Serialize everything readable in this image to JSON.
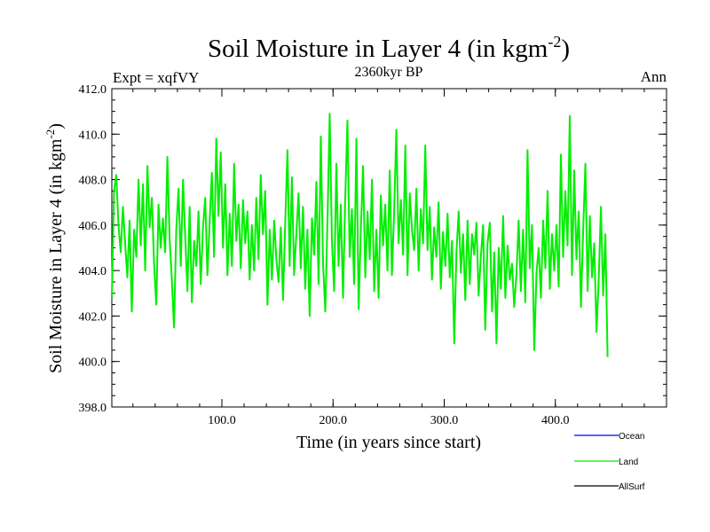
{
  "chart_data": {
    "type": "line",
    "title": "Soil Moisture in Layer 4 (in kgm",
    "title_sup": "-2",
    "title_close": ")",
    "subtitle": "2360kyr BP",
    "expt_label": "Expt = xqfVY",
    "period_label": "Ann",
    "xlabel": "Time (in years since start)",
    "ylabel": "Soil Moisture in Layer 4 (in kgm",
    "ylabel_sup": "-2",
    "ylabel_close": ")",
    "xlim": [
      1,
      500
    ],
    "ylim": [
      398.0,
      412.0
    ],
    "x_ticks": [
      {
        "value": 100,
        "label": "100.0"
      },
      {
        "value": 200,
        "label": "200.0"
      },
      {
        "value": 300,
        "label": "300.0"
      },
      {
        "value": 400,
        "label": "400.0"
      }
    ],
    "y_ticks": [
      {
        "value": 398,
        "label": "398.0"
      },
      {
        "value": 400,
        "label": "400.0"
      },
      {
        "value": 402,
        "label": "402.0"
      },
      {
        "value": 404,
        "label": "404.0"
      },
      {
        "value": 406,
        "label": "406.0"
      },
      {
        "value": 408,
        "label": "408.0"
      },
      {
        "value": 410,
        "label": "410.0"
      },
      {
        "value": 412,
        "label": "412.0"
      }
    ],
    "legend": [
      {
        "name": "Ocean",
        "color": "#0000ff"
      },
      {
        "name": "Land",
        "color": "#00ee00"
      },
      {
        "name": "AllSurf",
        "color": "#000000"
      }
    ],
    "series": [
      {
        "name": "Land",
        "color": "#00ee00",
        "x_start": 1,
        "x_step": 2,
        "values": [
          402.8,
          407.5,
          408.2,
          406.0,
          404.8,
          406.8,
          405.2,
          403.7,
          406.2,
          402.2,
          405.8,
          404.6,
          408.0,
          405.1,
          407.8,
          404.0,
          408.6,
          405.9,
          407.2,
          404.3,
          402.5,
          406.9,
          405.0,
          406.3,
          404.8,
          409.0,
          405.4,
          403.6,
          401.5,
          405.8,
          407.6,
          404.2,
          408.0,
          405.5,
          403.1,
          406.8,
          402.6,
          405.3,
          404.2,
          406.6,
          403.4,
          405.9,
          407.2,
          403.8,
          406.1,
          408.3,
          404.6,
          409.8,
          406.4,
          409.2,
          405.0,
          407.8,
          403.8,
          406.5,
          404.2,
          408.7,
          405.3,
          406.9,
          404.1,
          407.1,
          405.2,
          406.6,
          403.6,
          406.0,
          404.0,
          407.2,
          404.5,
          408.2,
          405.6,
          407.5,
          402.5,
          405.8,
          403.6,
          406.2,
          404.5,
          403.5,
          405.9,
          402.7,
          406.1,
          409.3,
          404.2,
          408.1,
          403.8,
          405.6,
          407.4,
          404.1,
          406.8,
          403.2,
          405.8,
          402.0,
          406.3,
          404.7,
          407.9,
          403.4,
          409.9,
          404.3,
          402.2,
          406.2,
          410.9,
          405.3,
          403.1,
          408.7,
          404.2,
          406.9,
          402.8,
          407.2,
          410.6,
          404.6,
          406.7,
          403.4,
          409.8,
          402.3,
          405.8,
          408.6,
          403.7,
          406.6,
          404.5,
          408.0,
          403.1,
          405.8,
          402.8,
          407.3,
          405.1,
          406.9,
          404.0,
          408.4,
          403.8,
          406.6,
          410.2,
          405.2,
          407.1,
          404.7,
          409.5,
          403.8,
          407.4,
          405.8,
          404.9,
          407.6,
          404.0,
          406.7,
          405.2,
          409.5,
          404.9,
          406.8,
          403.6,
          405.9,
          404.6,
          407.0,
          403.2,
          405.7,
          404.2,
          406.5,
          403.7,
          405.3,
          400.8,
          404.8,
          406.6,
          403.9,
          405.6,
          402.7,
          406.2,
          403.4,
          405.6,
          404.7,
          406.1,
          402.9,
          404.6,
          406.0,
          401.4,
          405.2,
          406.1,
          402.2,
          404.8,
          400.8,
          405.0,
          403.2,
          406.4,
          402.8,
          405.1,
          403.6,
          404.3,
          402.4,
          403.8,
          406.2,
          403.1,
          405.8,
          402.6,
          409.3,
          404.1,
          406.0,
          400.5,
          403.9,
          405.0,
          402.8,
          406.2,
          404.1,
          407.5,
          403.2,
          405.6,
          404.0,
          406.0,
          403.3,
          409.1,
          404.6,
          407.5,
          405.1,
          410.8,
          403.8,
          408.4,
          404.5,
          406.6,
          402.4,
          405.8,
          408.7,
          403.1,
          406.4,
          403.7,
          405.2,
          401.3,
          403.6,
          406.8,
          402.9,
          405.6,
          400.2
        ]
      }
    ]
  }
}
